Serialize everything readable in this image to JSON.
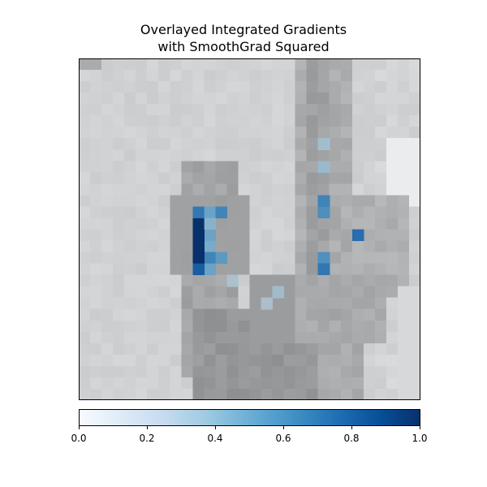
{
  "figure": {
    "title_line1": "Overlayed Integrated Gradients",
    "title_line2": "with SmoothGrad Squared"
  },
  "colorbar": {
    "colormap": "Blues",
    "range": [
      0.0,
      1.0
    ],
    "ticks": [
      "0.0",
      "0.2",
      "0.4",
      "0.6",
      "0.8",
      "1.0"
    ],
    "colors": [
      "#f7fbff",
      "#deebf7",
      "#c6dbef",
      "#9ecae1",
      "#6baed6",
      "#4292c6",
      "#2171b5",
      "#08519c",
      "#08306b"
    ]
  },
  "chart_data": {
    "type": "heatmap",
    "grid": "off",
    "axes": "hidden",
    "overlay_cells": [
      {
        "row": 15,
        "col": 11,
        "value": 0.55
      },
      {
        "row": 16,
        "col": 11,
        "value": 0.5
      },
      {
        "row": 17,
        "col": 11,
        "value": 0.7
      },
      {
        "row": 17,
        "col": 12,
        "value": 0.6
      },
      {
        "row": 18,
        "col": 11,
        "value": 0.55
      },
      {
        "row": 14,
        "col": 10,
        "value": 1.0
      },
      {
        "row": 15,
        "col": 10,
        "value": 1.0
      },
      {
        "row": 16,
        "col": 10,
        "value": 1.0
      },
      {
        "row": 17,
        "col": 10,
        "value": 1.0
      },
      {
        "row": 13,
        "col": 10,
        "value": 0.75
      },
      {
        "row": 18,
        "col": 10,
        "value": 0.85
      },
      {
        "row": 13,
        "col": 11,
        "value": 0.55
      },
      {
        "row": 13,
        "col": 12,
        "value": 0.7
      },
      {
        "row": 14,
        "col": 11,
        "value": 0.45
      },
      {
        "row": 12,
        "col": 21,
        "value": 0.7
      },
      {
        "row": 13,
        "col": 21,
        "value": 0.65
      },
      {
        "row": 17,
        "col": 21,
        "value": 0.65
      },
      {
        "row": 18,
        "col": 21,
        "value": 0.75
      },
      {
        "row": 15,
        "col": 24,
        "value": 0.8
      },
      {
        "row": 9,
        "col": 21,
        "value": 0.4
      },
      {
        "row": 7,
        "col": 21,
        "value": 0.35
      },
      {
        "row": 20,
        "col": 17,
        "value": 0.35
      },
      {
        "row": 21,
        "col": 16,
        "value": 0.3
      },
      {
        "row": 19,
        "col": 13,
        "value": 0.3
      }
    ]
  }
}
